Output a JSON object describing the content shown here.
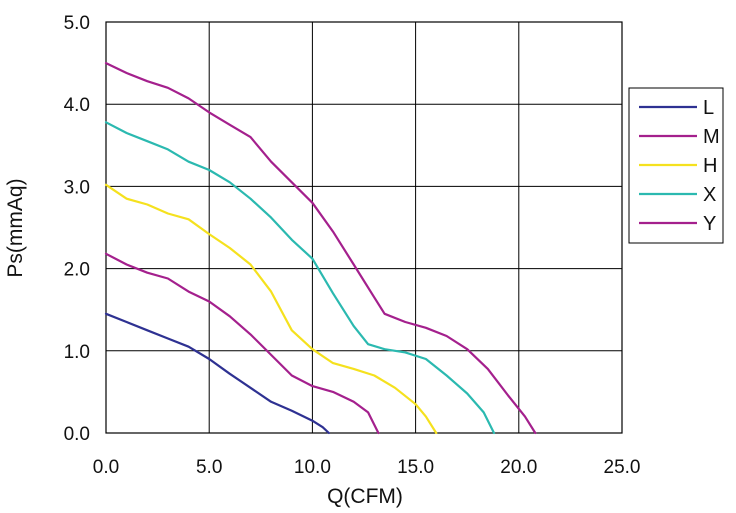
{
  "chart_data": {
    "type": "line",
    "title": "",
    "xlabel": "Q(CFM)",
    "ylabel": "Ps(mmAq)",
    "xlim": [
      0,
      25
    ],
    "ylim": [
      0,
      5
    ],
    "x_ticks": [
      "0.0",
      "5.0",
      "10.0",
      "15.0",
      "20.0",
      "25.0"
    ],
    "y_ticks": [
      "0.0",
      "1.0",
      "2.0",
      "3.0",
      "4.0",
      "5.0"
    ],
    "grid": true,
    "legend_position": "right",
    "series": [
      {
        "name": "L",
        "color": "#2e3192",
        "points": [
          [
            0,
            1.45
          ],
          [
            1,
            1.35
          ],
          [
            2,
            1.25
          ],
          [
            3,
            1.15
          ],
          [
            4,
            1.05
          ],
          [
            5,
            0.9
          ],
          [
            6,
            0.72
          ],
          [
            7,
            0.55
          ],
          [
            8,
            0.38
          ],
          [
            9,
            0.27
          ],
          [
            10,
            0.15
          ],
          [
            10.5,
            0.07
          ],
          [
            10.8,
            0
          ]
        ]
      },
      {
        "name": "M",
        "color": "#a4208d",
        "points": [
          [
            0,
            2.18
          ],
          [
            1,
            2.05
          ],
          [
            2,
            1.95
          ],
          [
            3,
            1.88
          ],
          [
            4,
            1.72
          ],
          [
            5,
            1.6
          ],
          [
            6,
            1.42
          ],
          [
            7,
            1.2
          ],
          [
            8,
            0.95
          ],
          [
            9,
            0.7
          ],
          [
            10,
            0.57
          ],
          [
            11,
            0.5
          ],
          [
            12,
            0.38
          ],
          [
            12.7,
            0.25
          ],
          [
            13.2,
            0
          ]
        ]
      },
      {
        "name": "H",
        "color": "#f5e11e",
        "points": [
          [
            0,
            3.02
          ],
          [
            1,
            2.85
          ],
          [
            2,
            2.78
          ],
          [
            3,
            2.67
          ],
          [
            4,
            2.6
          ],
          [
            5,
            2.42
          ],
          [
            6,
            2.25
          ],
          [
            7,
            2.05
          ],
          [
            8,
            1.72
          ],
          [
            9,
            1.25
          ],
          [
            10,
            1.02
          ],
          [
            11,
            0.85
          ],
          [
            12,
            0.78
          ],
          [
            13,
            0.7
          ],
          [
            14,
            0.55
          ],
          [
            15,
            0.35
          ],
          [
            15.5,
            0.2
          ],
          [
            16,
            0
          ]
        ]
      },
      {
        "name": "X",
        "color": "#2bb9b0",
        "points": [
          [
            0,
            3.78
          ],
          [
            1,
            3.65
          ],
          [
            2,
            3.55
          ],
          [
            3,
            3.45
          ],
          [
            4,
            3.3
          ],
          [
            5,
            3.2
          ],
          [
            6,
            3.05
          ],
          [
            7,
            2.85
          ],
          [
            8,
            2.62
          ],
          [
            9,
            2.35
          ],
          [
            10,
            2.12
          ],
          [
            11,
            1.7
          ],
          [
            12,
            1.3
          ],
          [
            12.7,
            1.08
          ],
          [
            13.5,
            1.02
          ],
          [
            14.5,
            0.98
          ],
          [
            15.5,
            0.9
          ],
          [
            16.5,
            0.7
          ],
          [
            17.5,
            0.48
          ],
          [
            18.3,
            0.25
          ],
          [
            18.8,
            0
          ]
        ]
      },
      {
        "name": "Y",
        "color": "#a4208d",
        "points": [
          [
            0,
            4.5
          ],
          [
            1,
            4.38
          ],
          [
            2,
            4.28
          ],
          [
            3,
            4.2
          ],
          [
            4,
            4.07
          ],
          [
            5,
            3.9
          ],
          [
            6,
            3.75
          ],
          [
            7,
            3.6
          ],
          [
            8,
            3.3
          ],
          [
            9,
            3.05
          ],
          [
            10,
            2.8
          ],
          [
            11,
            2.45
          ],
          [
            12,
            2.05
          ],
          [
            13,
            1.65
          ],
          [
            13.5,
            1.45
          ],
          [
            14.5,
            1.35
          ],
          [
            15.5,
            1.28
          ],
          [
            16.5,
            1.18
          ],
          [
            17.5,
            1.02
          ],
          [
            18.5,
            0.78
          ],
          [
            19.5,
            0.45
          ],
          [
            20.3,
            0.2
          ],
          [
            20.8,
            0
          ]
        ]
      }
    ]
  }
}
